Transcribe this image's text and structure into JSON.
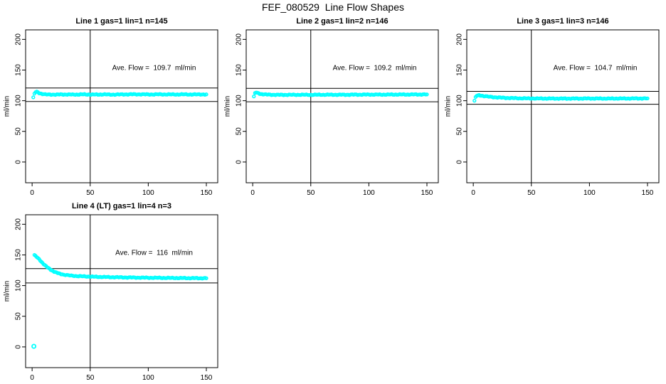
{
  "page_title": "FEF_080529  Line Flow Shapes",
  "colors": {
    "marker": "#00FFFF",
    "axis": "#000000",
    "background": "#FFFFFF"
  },
  "chart_data": [
    {
      "type": "scatter",
      "title": "Line 1 gas=1 lin=1 n=145",
      "xlabel": "",
      "ylabel": "ml/min",
      "annotation": "Ave. Flow =  109.7  ml/min",
      "ave_flow": 109.7,
      "xlim": [
        -5.6,
        159.8
      ],
      "ylim": [
        -33.8,
        215.5
      ],
      "xticks": [
        0,
        50,
        100,
        150
      ],
      "yticks": [
        0,
        50,
        100,
        150,
        200
      ],
      "grid": false,
      "legend": "none",
      "vline_x": 50,
      "hlines": [
        120.7,
        98.7
      ],
      "points": [
        [
          1,
          105.5
        ],
        [
          2,
          111
        ],
        [
          3,
          114
        ],
        [
          4,
          114.5
        ],
        [
          6,
          112.5
        ],
        [
          8,
          111.5
        ],
        [
          10,
          110.5
        ],
        [
          14,
          110
        ],
        [
          20,
          110
        ],
        [
          28,
          110.2
        ],
        [
          36,
          110
        ],
        [
          44,
          110.3
        ],
        [
          52,
          110
        ],
        [
          60,
          110.2
        ],
        [
          70,
          110
        ],
        [
          80,
          110.3
        ],
        [
          90,
          110.5
        ],
        [
          100,
          110.2
        ],
        [
          110,
          110.4
        ],
        [
          120,
          110.2
        ],
        [
          130,
          110.3
        ],
        [
          140,
          110.2
        ],
        [
          150,
          110.3
        ]
      ],
      "outliers": []
    },
    {
      "type": "scatter",
      "title": "Line 2 gas=1 lin=2 n=146",
      "xlabel": "",
      "ylabel": "ml/min",
      "annotation": "Ave. Flow =  109.2  ml/min",
      "ave_flow": 109.2,
      "xlim": [
        -5.6,
        159.8
      ],
      "ylim": [
        -33.8,
        215.5
      ],
      "xticks": [
        0,
        50,
        100,
        150
      ],
      "yticks": [
        0,
        50,
        100,
        150,
        200
      ],
      "grid": false,
      "legend": "none",
      "vline_x": 50,
      "hlines": [
        120.1,
        98.3
      ],
      "points": [
        [
          1,
          107
        ],
        [
          2,
          112
        ],
        [
          3,
          113.5
        ],
        [
          5,
          112
        ],
        [
          7,
          111
        ],
        [
          10,
          110.3
        ],
        [
          15,
          109.8
        ],
        [
          22,
          109.6
        ],
        [
          30,
          109.6
        ],
        [
          40,
          109.7
        ],
        [
          50,
          109.6
        ],
        [
          62,
          109.8
        ],
        [
          75,
          109.7
        ],
        [
          88,
          109.9
        ],
        [
          100,
          110
        ],
        [
          115,
          110
        ],
        [
          130,
          110.1
        ],
        [
          150,
          110.2
        ]
      ],
      "outliers": []
    },
    {
      "type": "scatter",
      "title": "Line 3 gas=1 lin=3 n=146",
      "xlabel": "",
      "ylabel": "ml/min",
      "annotation": "Ave. Flow =  104.7  ml/min",
      "ave_flow": 104.7,
      "xlim": [
        -5.6,
        159.8
      ],
      "ylim": [
        -33.8,
        215.5
      ],
      "xticks": [
        0,
        50,
        100,
        150
      ],
      "yticks": [
        0,
        50,
        100,
        150,
        200
      ],
      "grid": false,
      "legend": "none",
      "vline_x": 50,
      "hlines": [
        115.2,
        94.2
      ],
      "points": [
        [
          1,
          100
        ],
        [
          2,
          105.5
        ],
        [
          3,
          108
        ],
        [
          5,
          109
        ],
        [
          8,
          108
        ],
        [
          12,
          106.8
        ],
        [
          16,
          106
        ],
        [
          22,
          105.2
        ],
        [
          28,
          104.6
        ],
        [
          35,
          104.2
        ],
        [
          45,
          103.8
        ],
        [
          55,
          103.6
        ],
        [
          70,
          103.5
        ],
        [
          85,
          103.5
        ],
        [
          100,
          103.6
        ],
        [
          115,
          103.5
        ],
        [
          130,
          103.6
        ],
        [
          150,
          103.7
        ]
      ],
      "outliers": []
    },
    {
      "type": "scatter",
      "title": "Line 4 (LT) gas=1 lin=4 n=3",
      "xlabel": "",
      "ylabel": "ml/min",
      "annotation": "Ave. Flow =  116  ml/min",
      "ave_flow": 116,
      "xlim": [
        -5.6,
        159.8
      ],
      "ylim": [
        -33.8,
        215.5
      ],
      "xticks": [
        0,
        50,
        100,
        150
      ],
      "yticks": [
        0,
        50,
        100,
        150,
        200
      ],
      "grid": false,
      "legend": "none",
      "vline_x": 50,
      "hlines": [
        127.6,
        104.4
      ],
      "points": [
        [
          2,
          150
        ],
        [
          3,
          148
        ],
        [
          4,
          146.5
        ],
        [
          6,
          143
        ],
        [
          8,
          139
        ],
        [
          10,
          135
        ],
        [
          12,
          131.5
        ],
        [
          14,
          128.5
        ],
        [
          16,
          126
        ],
        [
          18,
          123.8
        ],
        [
          20,
          121.8
        ],
        [
          23,
          119.8
        ],
        [
          26,
          118.3
        ],
        [
          30,
          117
        ],
        [
          35,
          116
        ],
        [
          40,
          115.4
        ],
        [
          46,
          114.9
        ],
        [
          54,
          114.4
        ],
        [
          62,
          114
        ],
        [
          72,
          113.6
        ],
        [
          82,
          113.3
        ],
        [
          92,
          113
        ],
        [
          102,
          112.8
        ],
        [
          112,
          112.6
        ],
        [
          122,
          112.4
        ],
        [
          136,
          112.2
        ],
        [
          150,
          112
        ]
      ],
      "outliers": [
        [
          1.5,
          1
        ]
      ]
    }
  ]
}
